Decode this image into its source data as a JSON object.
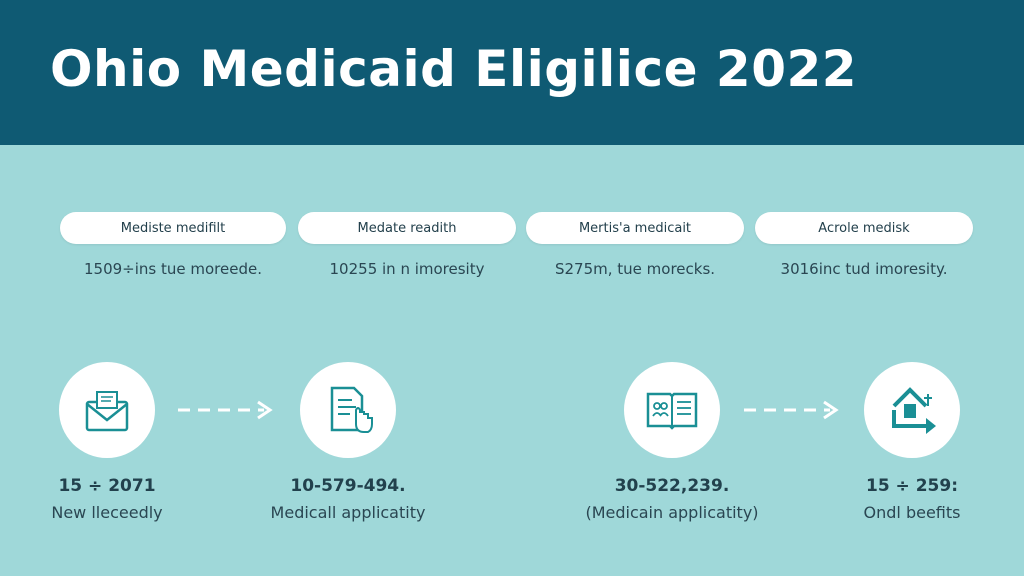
{
  "header": {
    "title": "Ohio Medicaid Eligilice 2022"
  },
  "categories": [
    {
      "label": "Mediste medifilt",
      "note": "1509÷ins tue moreede."
    },
    {
      "label": "Medate readith",
      "note": "10255 in n imoresity"
    },
    {
      "label": "Mertis'a medicait",
      "note": "S275m, tue morecks."
    },
    {
      "label": "Acrole medisk",
      "note": "3016inc tud imoresity."
    }
  ],
  "steps": [
    {
      "value": "15 ÷ 2071",
      "label": "New lleceedly",
      "icon": "envelope-icon"
    },
    {
      "value": "10-579-494.",
      "label": "Medicall applicatity",
      "icon": "document-hand-icon"
    },
    {
      "value": "30-522,239.",
      "label": "(Medicain applicatity)",
      "icon": "open-book-icon"
    },
    {
      "value": "15 ÷ 259:",
      "label": "Ondl beefits",
      "icon": "house-arrow-icon"
    }
  ],
  "colors": {
    "header": "#0f5a73",
    "background": "#9fd8d9",
    "accent": "#1a8f95"
  }
}
